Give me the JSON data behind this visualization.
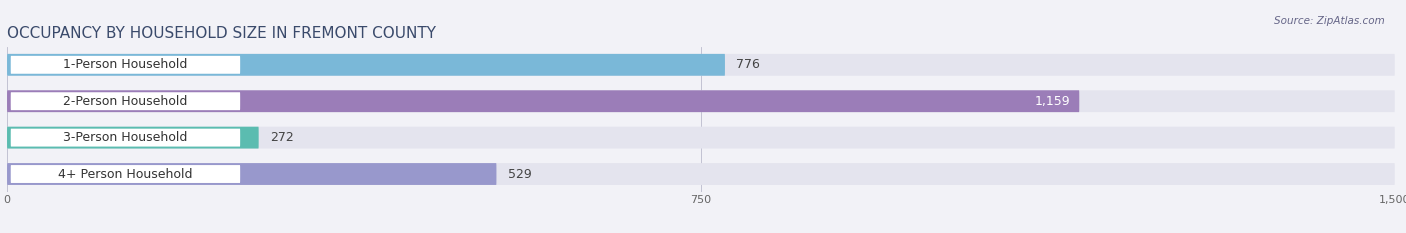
{
  "title": "OCCUPANCY BY HOUSEHOLD SIZE IN FREMONT COUNTY",
  "source": "Source: ZipAtlas.com",
  "categories": [
    "1-Person Household",
    "2-Person Household",
    "3-Person Household",
    "4+ Person Household"
  ],
  "values": [
    776,
    1159,
    272,
    529
  ],
  "bar_colors": [
    "#7ab8d8",
    "#9b7db8",
    "#5bbcb0",
    "#9898cc"
  ],
  "value_labels": [
    "776",
    "1,159",
    "272",
    "529"
  ],
  "xlim": [
    0,
    1500
  ],
  "xticks": [
    0,
    750,
    1500
  ],
  "xtick_labels": [
    "0",
    "750",
    "1,500"
  ],
  "background_color": "#f2f2f7",
  "bar_background_color": "#e4e4ee",
  "title_fontsize": 11,
  "label_fontsize": 9,
  "value_fontsize": 9,
  "bar_height": 0.6,
  "label_box_color": "#ffffff",
  "label_text_color": "#333333"
}
